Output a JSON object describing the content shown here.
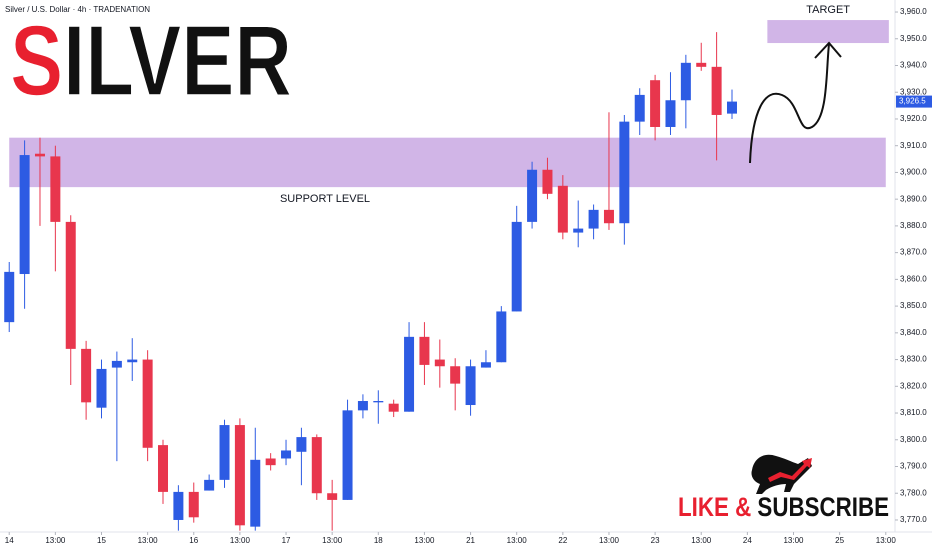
{
  "chart_data": {
    "type": "candlestick",
    "header": "Silver / U.S. Dollar · 4h · TRADENATION",
    "title": "SILVER",
    "open": [
      3844,
      3862,
      3907,
      3906,
      3881.5,
      3834,
      3812,
      3827,
      3829,
      3830,
      3798,
      3770,
      3780.5,
      3781,
      3785,
      3805.5,
      3767.5,
      3793,
      3793,
      3795.5,
      3801,
      3780,
      3777.5,
      3811,
      3814,
      3813.5,
      3810.5,
      3838.5,
      3830,
      3827.5,
      3813,
      3827,
      3829,
      3848,
      3881.5,
      3901,
      3895,
      3877.5,
      3879,
      3886,
      3881,
      3919,
      3934.5,
      3917,
      3927,
      3941,
      3939.5,
      3922
    ],
    "high": [
      3866.5,
      3912,
      3913,
      3910,
      3884,
      3837,
      3830,
      3833,
      3838,
      3833.5,
      3800,
      3783,
      3784,
      3787,
      3807.5,
      3808,
      3804.5,
      3795,
      3800,
      3804.5,
      3802,
      3785,
      3815,
      3817,
      3818.5,
      3815,
      3844,
      3844,
      3837.5,
      3830.5,
      3830,
      3833.5,
      3850,
      3887.5,
      3904,
      3905.5,
      3899,
      3889.5,
      3888,
      3922.5,
      3921.5,
      3931.5,
      3936.5,
      3937.5,
      3944,
      3948.5,
      3952.5,
      3931
    ],
    "low": [
      3840.3,
      3849,
      3880,
      3863,
      3820.5,
      3807.5,
      3808,
      3792,
      3822,
      3792,
      3776,
      3766,
      3769,
      3781,
      3782,
      3766,
      3766,
      3788.5,
      3790.5,
      3783,
      3777.5,
      3766,
      3777.5,
      3808,
      3806,
      3808.5,
      3810.5,
      3820.5,
      3819.5,
      3811,
      3809,
      3827,
      3829,
      3848,
      3879,
      3890,
      3875,
      3872,
      3875,
      3878.5,
      3873,
      3914,
      3912,
      3914,
      3916.5,
      3938,
      3904.5,
      3920
    ],
    "close": [
      3862.8,
      3906.5,
      3906,
      3881.5,
      3834,
      3814,
      3826.5,
      3829.5,
      3830,
      3797,
      3780.5,
      3780.5,
      3771,
      3785,
      3805.5,
      3768,
      3792.5,
      3790.5,
      3796,
      3801,
      3780,
      3777.5,
      3811,
      3814.5,
      3814.5,
      3810.5,
      3838.5,
      3828,
      3827.5,
      3821,
      3827.5,
      3829,
      3848,
      3881.5,
      3901,
      3892,
      3877.5,
      3879,
      3886,
      3881,
      3919,
      3929,
      3917,
      3927,
      3941,
      3939.5,
      3921.5,
      3926.5
    ],
    "up_color": "#2d5be3",
    "down_color": "#e8364d",
    "xlim": [
      -0.6,
      57.6
    ],
    "xticks": [
      {
        "value": 0,
        "label": "14"
      },
      {
        "value": 3,
        "label": "13:00"
      },
      {
        "value": 6,
        "label": "15"
      },
      {
        "value": 9,
        "label": "13:00"
      },
      {
        "value": 12,
        "label": "16"
      },
      {
        "value": 15,
        "label": "13:00"
      },
      {
        "value": 18,
        "label": "17"
      },
      {
        "value": 21,
        "label": "13:00"
      },
      {
        "value": 24,
        "label": "18"
      },
      {
        "value": 27,
        "label": "13:00"
      },
      {
        "value": 30,
        "label": "21"
      },
      {
        "value": 33,
        "label": "13:00"
      },
      {
        "value": 36,
        "label": "22"
      },
      {
        "value": 39,
        "label": "13:00"
      },
      {
        "value": 42,
        "label": "23"
      },
      {
        "value": 45,
        "label": "13:00"
      },
      {
        "value": 48,
        "label": "24"
      },
      {
        "value": 51,
        "label": "13:00"
      },
      {
        "value": 54,
        "label": "25"
      },
      {
        "value": 57,
        "label": "13:00"
      }
    ],
    "ylim": [
      3765.5,
      3964.5
    ],
    "yticks": [
      {
        "value": 3770,
        "label": "3,770.0"
      },
      {
        "value": 3780,
        "label": "3,780.0"
      },
      {
        "value": 3790,
        "label": "3,790.0"
      },
      {
        "value": 3800,
        "label": "3,800.0"
      },
      {
        "value": 3810,
        "label": "3,810.0"
      },
      {
        "value": 3820,
        "label": "3,820.0"
      },
      {
        "value": 3830,
        "label": "3,830.0"
      },
      {
        "value": 3840,
        "label": "3,840.0"
      },
      {
        "value": 3850,
        "label": "3,850.0"
      },
      {
        "value": 3860,
        "label": "3,860.0"
      },
      {
        "value": 3870,
        "label": "3,870.0"
      },
      {
        "value": 3880,
        "label": "3,880.0"
      },
      {
        "value": 3890,
        "label": "3,890.0"
      },
      {
        "value": 3900,
        "label": "3,900.0"
      },
      {
        "value": 3910,
        "label": "3,910.0"
      },
      {
        "value": 3920,
        "label": "3,920.0"
      },
      {
        "value": 3930,
        "label": "3,930.0"
      },
      {
        "value": 3940,
        "label": "3,940.0"
      },
      {
        "value": 3950,
        "label": "3,950.0"
      },
      {
        "value": 3960,
        "label": "3,960.0"
      }
    ],
    "last_price": {
      "value": 3926.5,
      "label": "3,926.5"
    },
    "zones": [
      {
        "label": "SUPPORT LEVEL",
        "from": 3894.5,
        "to": 3913,
        "x_from": 0,
        "x_to": 57,
        "color": "#c9a8e3"
      },
      {
        "label": "TARGET",
        "from": 3948.4,
        "to": 3957,
        "x_from": 49.3,
        "x_to": 57.2,
        "color": "#c9a8e3"
      }
    ],
    "banner": "LIKE & SUBSCRIBE"
  }
}
